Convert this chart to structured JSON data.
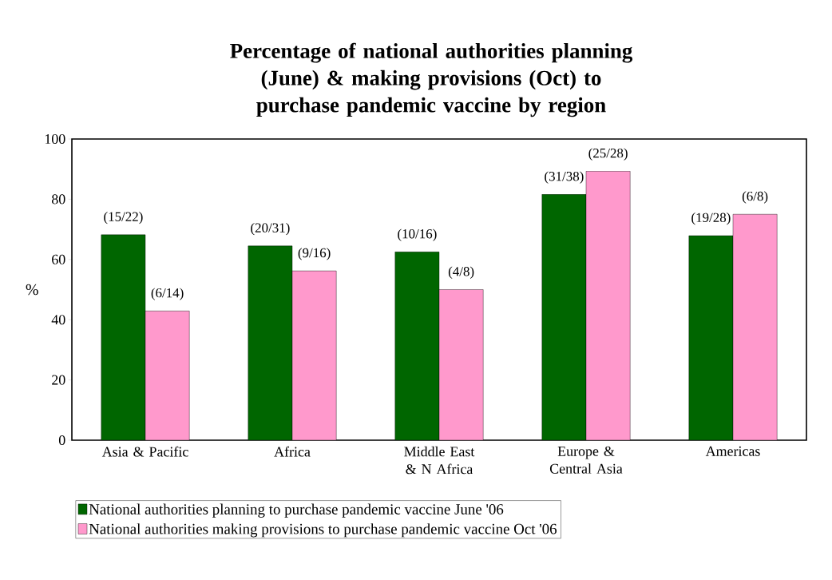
{
  "chart_data": {
    "type": "bar",
    "title": "Percentage of national authorities planning (June) & making provisions (Oct) to purchase pandemic vaccine by region",
    "ylabel": "%",
    "categories": [
      "Asia & Pacific",
      "Africa",
      "Middle East & N Africa",
      "Europe & Central Asia",
      "Americas"
    ],
    "series": [
      {
        "name": "National authorities planning to purchase pandemic vaccine  June '06",
        "color": "#006600",
        "values": [
          68.2,
          64.5,
          62.5,
          81.6,
          67.9
        ],
        "value_labels": [
          "(15/22)",
          "(20/31)",
          "(10/16)",
          "(31/38)",
          "(19/28)"
        ]
      },
      {
        "name": "National authorities making provisions to purchase pandemic vaccine Oct '06",
        "color": "#ff99cc",
        "values": [
          42.9,
          56.2,
          50.0,
          89.3,
          75.0
        ],
        "value_labels": [
          "(6/14)",
          "(9/16)",
          "(4/8)",
          "(25/28)",
          "(6/8)"
        ]
      }
    ],
    "ylim": [
      0,
      100
    ],
    "yticks": [
      0,
      20,
      40,
      60,
      80,
      100
    ],
    "grid": false,
    "legend": "bottom"
  }
}
